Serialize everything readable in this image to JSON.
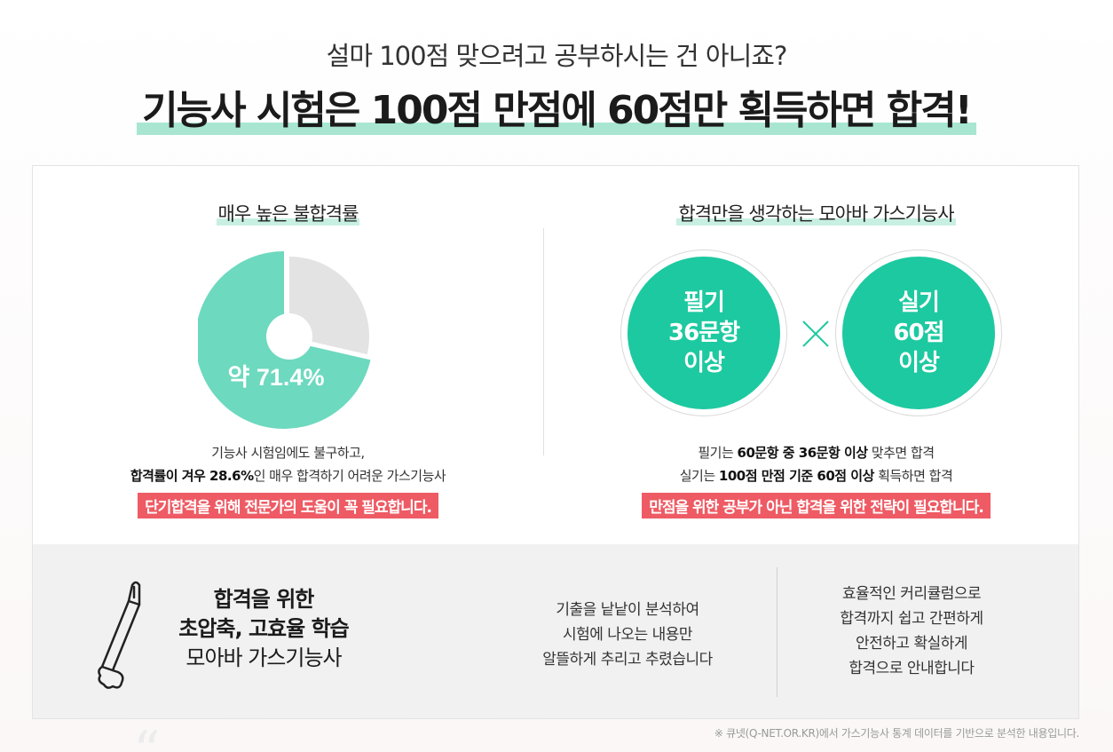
{
  "header": {
    "subtitle": "설마 100점 맞으려고 공부하시는 건 아니죠?",
    "headline": "기능사 시험은 100점 만점에 60점만 획득하면 합격!"
  },
  "left": {
    "title": "매우 높은 불합격률",
    "pie": {
      "fail_percent": 71.4,
      "pass_percent": 28.6,
      "label": "약 71.4%",
      "fail_color": "#6dd9bf",
      "pass_color": "#e3e3e3"
    },
    "desc_line1": "기능사 시험임에도 불구하고,",
    "desc_line2_bold": "합격률이 겨우 28.6%",
    "desc_line2_rest": "인 매우 합격하기 어려운 가스기능사",
    "highlight": "단기합격을 위해 전문가의 도움이 꼭 필요합니다."
  },
  "right": {
    "title": "합격만을 생각하는 모아바 가스기능사",
    "circle1": [
      "필기",
      "36문항",
      "이상"
    ],
    "circle2": [
      "실기",
      "60점",
      "이상"
    ],
    "circle_color": "#1dc9a0",
    "line1_pre": "필기는 ",
    "line1_bold": "60문항 중 36문항 이상",
    "line1_post": " 맞추면 합격",
    "line2_pre": "실기는 ",
    "line2_bold": "100점 만점 기준 60점 이상",
    "line2_post": " 획득하면 합격",
    "highlight": "만점을 위한 공부가 아닌 합격을 위한 전략이 필요합니다."
  },
  "bottom": {
    "title_line1": "합격을 위한",
    "title_line2": "초압축, 고효율 학습",
    "title_line3": "모아바 가스기능사",
    "mid_lines": [
      "기출을 낱낱이 분석하여",
      "시험에 나오는 내용만",
      "알뜰하게 추리고 추렸습니다"
    ],
    "right_lines": [
      "효율적인 커리큘럼으로",
      "합격까지 쉽고 간편하게",
      "안전하고 확실하게",
      "합격으로 안내합니다"
    ]
  },
  "footnote": "※ 큐넷(Q-NET.OR.KR)에서 가스기능사 통계 데이터를 기반으로 분석한 내용입니다.",
  "accent": "#1dc9a0",
  "highlight_red": "#ee5b64",
  "icons": {
    "pen": "pen-icon",
    "times": "times-icon"
  }
}
